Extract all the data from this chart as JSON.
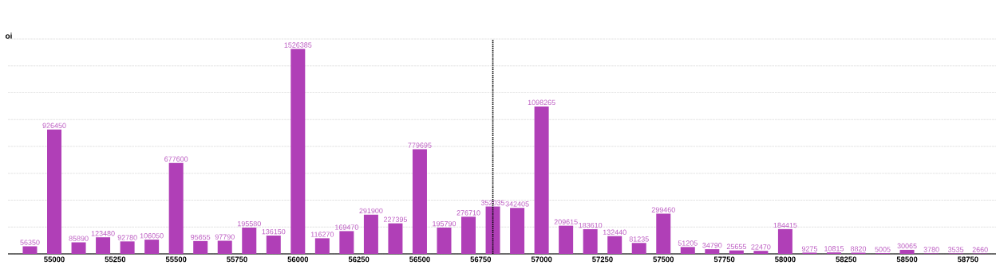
{
  "chart_data": {
    "type": "bar",
    "ylabel": "oi",
    "x": [
      54900,
      55000,
      55100,
      55200,
      55300,
      55400,
      55500,
      55600,
      55700,
      55800,
      55900,
      56000,
      56100,
      56200,
      56300,
      56400,
      56500,
      56600,
      56700,
      56800,
      56900,
      57000,
      57100,
      57200,
      57300,
      57400,
      57500,
      57600,
      57700,
      57800,
      57900,
      58000,
      58100,
      58200,
      58300,
      58400,
      58500,
      58600,
      58700,
      58800
    ],
    "values": [
      56350,
      926450,
      85890,
      123480,
      92780,
      106050,
      677600,
      95655,
      97790,
      195580,
      136150,
      1526385,
      116270,
      169470,
      291900,
      227395,
      779695,
      195790,
      276710,
      352035,
      342405,
      1098265,
      209615,
      183610,
      132440,
      81235,
      299460,
      51205,
      34790,
      25655,
      22470,
      184415,
      9275,
      10815,
      8820,
      5005,
      30065,
      3780,
      3535,
      2660
    ],
    "color": "#b03fb7",
    "data_labels": true,
    "xlim": [
      54810,
      58865
    ],
    "xticks": [
      55000,
      55250,
      55500,
      55750,
      56000,
      56250,
      56500,
      56750,
      57000,
      57250,
      57500,
      57750,
      58000,
      58250,
      58500,
      58750
    ],
    "ylim": [
      0,
      1600000
    ],
    "grid": "y",
    "tick_labels": "x",
    "ref_lines": [
      {
        "axis": "x",
        "value": 56800,
        "color": "#000000",
        "line_style": "dotted"
      }
    ]
  }
}
